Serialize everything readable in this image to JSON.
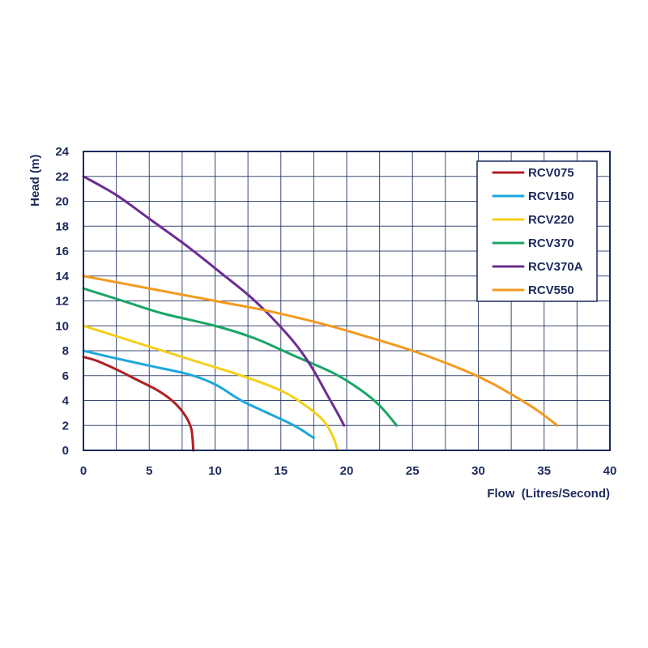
{
  "chart_data": {
    "type": "line",
    "title": "",
    "xlabel": "Flow  (Litres/Second)",
    "ylabel": "Head (m)",
    "xlim": [
      0,
      40
    ],
    "ylim": [
      0,
      24
    ],
    "xticks": [
      0,
      5,
      10,
      15,
      20,
      25,
      30,
      35,
      40
    ],
    "yticks": [
      0,
      2,
      4,
      6,
      8,
      10,
      12,
      14,
      16,
      18,
      20,
      22,
      24
    ],
    "x_grid_step": 2.5,
    "grid": true,
    "legend_position": "top-right",
    "axis_color": "#1c2a5c",
    "series": [
      {
        "name": "RCV075",
        "color": "#b01e23",
        "points": [
          [
            0,
            7.5
          ],
          [
            1,
            7.2
          ],
          [
            2.5,
            6.5
          ],
          [
            4,
            5.7
          ],
          [
            5.5,
            4.9
          ],
          [
            6.5,
            4.2
          ],
          [
            7.3,
            3.4
          ],
          [
            7.9,
            2.5
          ],
          [
            8.2,
            1.7
          ],
          [
            8.3,
            0.8
          ],
          [
            8.35,
            0
          ]
        ]
      },
      {
        "name": "RCV150",
        "color": "#1ea7dc",
        "points": [
          [
            0,
            8
          ],
          [
            2,
            7.5
          ],
          [
            5,
            6.8
          ],
          [
            8,
            6.1
          ],
          [
            10,
            5.3
          ],
          [
            12,
            4.0
          ],
          [
            14,
            3.0
          ],
          [
            16,
            2.0
          ],
          [
            17.5,
            1.0
          ]
        ]
      },
      {
        "name": "RCV220",
        "color": "#f5cf1a",
        "points": [
          [
            0,
            10
          ],
          [
            3,
            9.0
          ],
          [
            6,
            8.0
          ],
          [
            9,
            7.0
          ],
          [
            12,
            6.0
          ],
          [
            15,
            4.8
          ],
          [
            17,
            3.5
          ],
          [
            18.3,
            2.3
          ],
          [
            19,
            1.0
          ],
          [
            19.3,
            0
          ]
        ]
      },
      {
        "name": "RCV370",
        "color": "#1aa566",
        "points": [
          [
            0,
            13
          ],
          [
            3,
            12.0
          ],
          [
            6,
            11.0
          ],
          [
            10,
            10.0
          ],
          [
            13,
            9.0
          ],
          [
            16,
            7.6
          ],
          [
            19,
            6.2
          ],
          [
            21,
            4.9
          ],
          [
            22.5,
            3.6
          ],
          [
            23.8,
            2.0
          ]
        ]
      },
      {
        "name": "RCV370A",
        "color": "#6b2d91",
        "points": [
          [
            0,
            22
          ],
          [
            2.5,
            20.5
          ],
          [
            5,
            18.6
          ],
          [
            8,
            16.3
          ],
          [
            10.5,
            14.2
          ],
          [
            12.5,
            12.5
          ],
          [
            14,
            11.0
          ],
          [
            15.5,
            9.3
          ],
          [
            16.5,
            8.0
          ],
          [
            17.5,
            6.4
          ],
          [
            18.5,
            4.5
          ],
          [
            19.3,
            3.0
          ],
          [
            19.8,
            2.0
          ]
        ]
      },
      {
        "name": "RCV550",
        "color": "#f39a1e",
        "points": [
          [
            0,
            14
          ],
          [
            5,
            13.0
          ],
          [
            10,
            12.0
          ],
          [
            14,
            11.2
          ],
          [
            18,
            10.2
          ],
          [
            21,
            9.3
          ],
          [
            25,
            8.0
          ],
          [
            29,
            6.4
          ],
          [
            31,
            5.4
          ],
          [
            33,
            4.2
          ],
          [
            34.5,
            3.2
          ],
          [
            36,
            2.0
          ]
        ]
      }
    ]
  }
}
